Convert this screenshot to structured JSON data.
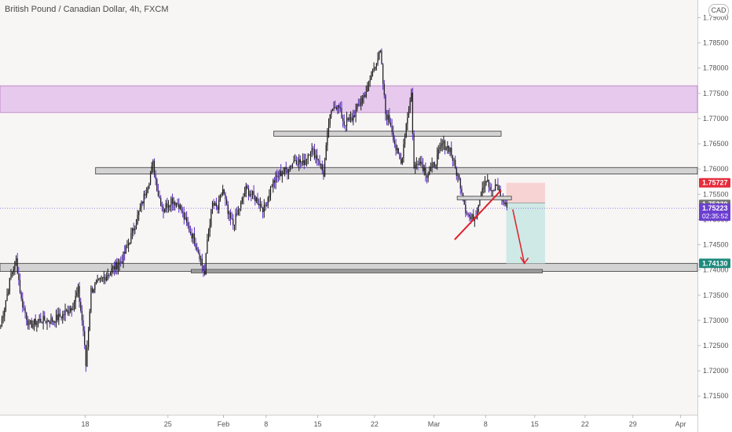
{
  "header": {
    "title": "British Pound / Canadian Dollar, 4h, FXCM",
    "currency": "CAD"
  },
  "colors": {
    "background": "#f8f5f5",
    "candle": "#1a1a1a",
    "wick_down": "#5b2dc9",
    "zone_purple": "#e6c9ec",
    "zone_gray": "#d3d3d3",
    "trend_line": "#e0202a",
    "stop_box": "#f8d3d3",
    "target_box": "#cfe9e6",
    "badge_red": "#e52b3b",
    "badge_gray": "#6f6f6f",
    "badge_purple": "#6c3fd0",
    "badge_teal": "#1d8a7d"
  },
  "chart_data": {
    "type": "candlestick",
    "symbol": "GBPCAD",
    "timeframe": "4h",
    "ylim": [
      1.7125,
      1.7945
    ],
    "y_ticks": [
      "1.79000",
      "1.78500",
      "1.78000",
      "1.77500",
      "1.77000",
      "1.76500",
      "1.76000",
      "1.75500",
      "1.75000",
      "1.74500",
      "1.74000",
      "1.73500",
      "1.73000",
      "1.72500",
      "1.72000",
      "1.71500"
    ],
    "y_tick_values": [
      1.79,
      1.785,
      1.78,
      1.775,
      1.77,
      1.765,
      1.76,
      1.755,
      1.75,
      1.745,
      1.74,
      1.735,
      1.73,
      1.725,
      1.72,
      1.715
    ],
    "x_labels": [
      "18",
      "25",
      "Feb",
      "8",
      "15",
      "22",
      "Mar",
      "8",
      "15",
      "22",
      "29",
      "Apr"
    ],
    "x_label_bars": [
      66,
      130,
      173,
      206,
      246,
      290,
      336,
      376,
      414,
      453,
      490,
      527
    ],
    "bars_total": 540,
    "price_path": [
      [
        0,
        1.729
      ],
      [
        8,
        1.739
      ],
      [
        12,
        1.742
      ],
      [
        16,
        1.734
      ],
      [
        22,
        1.729
      ],
      [
        30,
        1.73
      ],
      [
        40,
        1.73
      ],
      [
        48,
        1.731
      ],
      [
        56,
        1.733
      ],
      [
        60,
        1.736
      ],
      [
        64,
        1.728
      ],
      [
        66,
        1.721
      ],
      [
        70,
        1.736
      ],
      [
        78,
        1.738
      ],
      [
        86,
        1.74
      ],
      [
        94,
        1.742
      ],
      [
        100,
        1.746
      ],
      [
        108,
        1.752
      ],
      [
        114,
        1.757
      ],
      [
        118,
        1.761
      ],
      [
        122,
        1.755
      ],
      [
        126,
        1.752
      ],
      [
        132,
        1.754
      ],
      [
        138,
        1.753
      ],
      [
        144,
        1.749
      ],
      [
        150,
        1.746
      ],
      [
        154,
        1.743
      ],
      [
        158,
        1.739
      ],
      [
        160,
        1.746
      ],
      [
        164,
        1.753
      ],
      [
        168,
        1.752
      ],
      [
        172,
        1.756
      ],
      [
        176,
        1.751
      ],
      [
        180,
        1.749
      ],
      [
        186,
        1.753
      ],
      [
        190,
        1.756
      ],
      [
        198,
        1.754
      ],
      [
        204,
        1.752
      ],
      [
        210,
        1.757
      ],
      [
        216,
        1.759
      ],
      [
        222,
        1.76
      ],
      [
        228,
        1.762
      ],
      [
        234,
        1.761
      ],
      [
        240,
        1.764
      ],
      [
        246,
        1.762
      ],
      [
        250,
        1.759
      ],
      [
        254,
        1.769
      ],
      [
        258,
        1.773
      ],
      [
        262,
        1.772
      ],
      [
        266,
        1.769
      ],
      [
        272,
        1.77
      ],
      [
        278,
        1.773
      ],
      [
        284,
        1.776
      ],
      [
        290,
        1.781
      ],
      [
        294,
        1.783
      ],
      [
        298,
        1.771
      ],
      [
        302,
        1.769
      ],
      [
        306,
        1.764
      ],
      [
        310,
        1.761
      ],
      [
        314,
        1.769
      ],
      [
        318,
        1.775
      ],
      [
        320,
        1.76
      ],
      [
        324,
        1.762
      ],
      [
        330,
        1.759
      ],
      [
        336,
        1.761
      ],
      [
        342,
        1.765
      ],
      [
        348,
        1.764
      ],
      [
        352,
        1.76
      ],
      [
        356,
        1.757
      ],
      [
        360,
        1.752
      ],
      [
        364,
        1.75
      ],
      [
        368,
        1.751
      ],
      [
        372,
        1.756
      ],
      [
        376,
        1.758
      ],
      [
        380,
        1.755
      ],
      [
        384,
        1.757
      ],
      [
        388,
        1.754
      ],
      [
        392,
        1.7522
      ]
    ],
    "zones": [
      {
        "kind": "purple",
        "from_bar": 0,
        "to_bar": 540,
        "top": 1.7765,
        "bottom": 1.7712
      },
      {
        "kind": "gray",
        "from_bar": 212,
        "to_bar": 388,
        "top": 1.7675,
        "bottom": 1.7665
      },
      {
        "kind": "gray",
        "from_bar": 74,
        "to_bar": 540,
        "top": 1.7603,
        "bottom": 1.759
      },
      {
        "kind": "gray",
        "from_bar": 0,
        "to_bar": 540,
        "top": 1.7413,
        "bottom": 1.7397
      },
      {
        "kind": "gray-dark",
        "from_bar": 148,
        "to_bar": 420,
        "top": 1.7401,
        "bottom": 1.7394
      }
    ],
    "trend_line": {
      "from": [
        352,
        1.746
      ],
      "to": [
        388,
        1.7558
      ]
    },
    "retest_box": {
      "from_bar": 354,
      "to_bar": 396,
      "top": 1.7546,
      "bottom": 1.7539
    },
    "trade": {
      "entry": 1.7533,
      "stop": 1.75727,
      "target": 1.7413,
      "from_bar": 392,
      "to_bar": 422,
      "arrow_from": [
        397,
        1.752
      ],
      "arrow_to": [
        406,
        1.7413
      ]
    },
    "price_labels": [
      {
        "value": 1.75727,
        "text": "1.75727",
        "color": "#e52b3b"
      },
      {
        "value": 1.7533,
        "text": "1.75330",
        "color": "#6f6f6f"
      },
      {
        "value": 1.75223,
        "text": "1.75223",
        "color": "#6c3fd0",
        "sub": "02:35:52"
      },
      {
        "value": 1.7413,
        "text": "1.74130",
        "color": "#1d8a7d"
      }
    ]
  }
}
